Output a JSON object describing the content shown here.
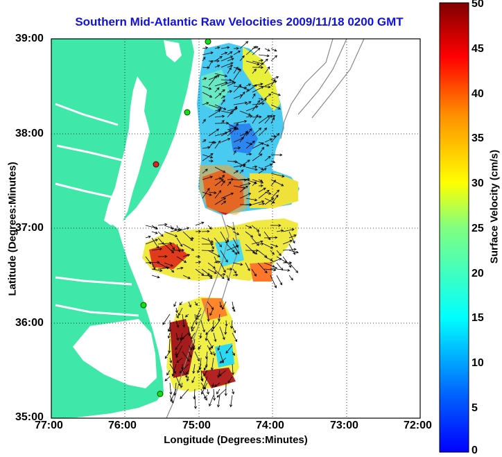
{
  "map": {
    "title": "Southern Mid-Atlantic Raw Velocities 2009/11/18 0200 GMT",
    "xlabel": "Longitude (Degrees:Minutes)",
    "ylabel": "Latitude (Degrees:Minutes)",
    "x_ticks": [
      "77:00",
      "76:00",
      "75:00",
      "74:00",
      "73:00",
      "72:00"
    ],
    "y_ticks": [
      "39:00",
      "38:00",
      "37:00",
      "36:00",
      "35:00"
    ],
    "land_color": "#3fe8a8",
    "grid": true
  },
  "colorbar": {
    "label": "Surface Velocity (cm/s)",
    "ticks": [
      "50",
      "45",
      "40",
      "35",
      "30",
      "25",
      "20",
      "15",
      "10",
      "5",
      "0"
    ],
    "range": [
      0,
      50
    ],
    "colormap": "jet"
  }
}
